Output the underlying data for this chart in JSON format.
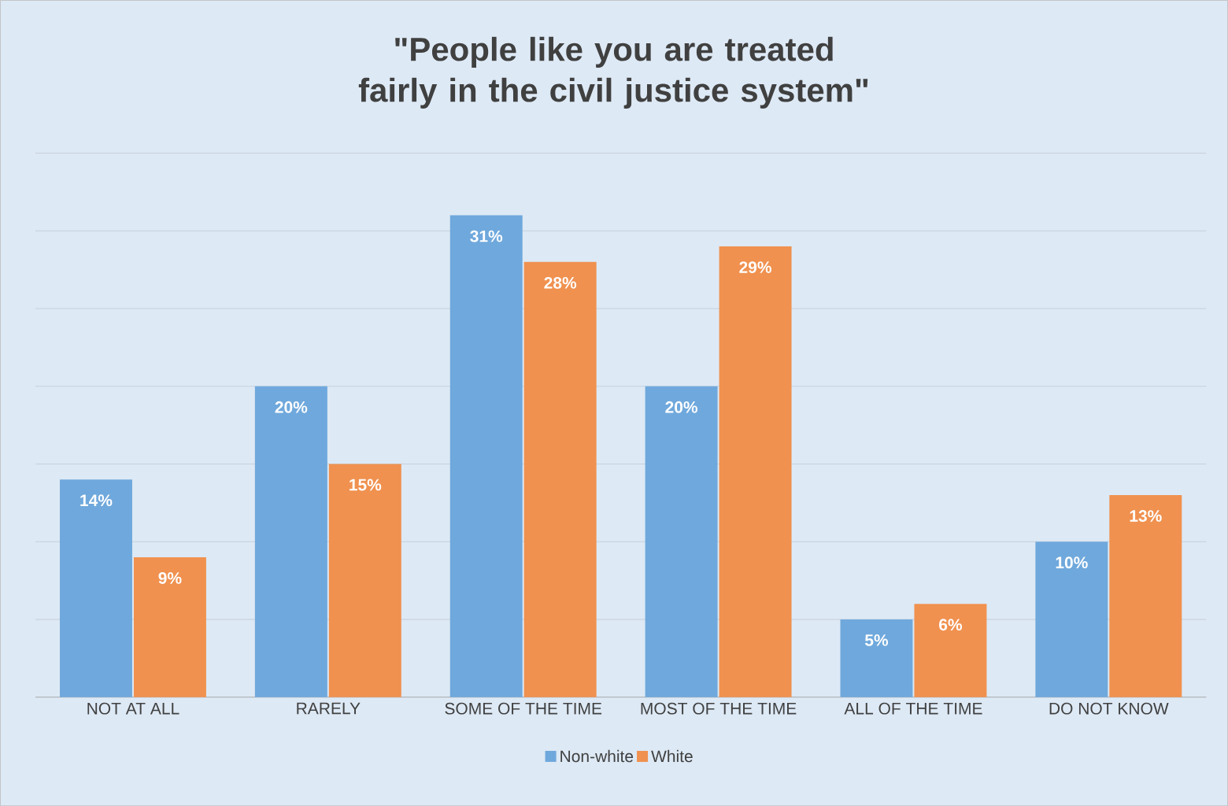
{
  "chart_data": {
    "type": "bar",
    "title": "\"People like you are treated fairly in the civil justice system\"",
    "categories": [
      "NOT AT ALL",
      "RARELY",
      "SOME OF THE TIME",
      "MOST OF THE TIME",
      "ALL OF THE TIME",
      "DO NOT KNOW"
    ],
    "series": [
      {
        "name": "Non-white",
        "color": "#6fa8dc",
        "values": [
          14,
          20,
          31,
          20,
          5,
          10
        ],
        "value_labels": [
          "14%",
          "20%",
          "31%",
          "20%",
          "5%",
          "10%"
        ]
      },
      {
        "name": "White",
        "color": "#f0914f",
        "values": [
          9,
          15,
          28,
          29,
          6,
          13
        ],
        "value_labels": [
          "9%",
          "15%",
          "28%",
          "29%",
          "6%",
          "13%"
        ]
      }
    ],
    "tick_labels": "x",
    "grid": "y",
    "legend": "bottom"
  }
}
